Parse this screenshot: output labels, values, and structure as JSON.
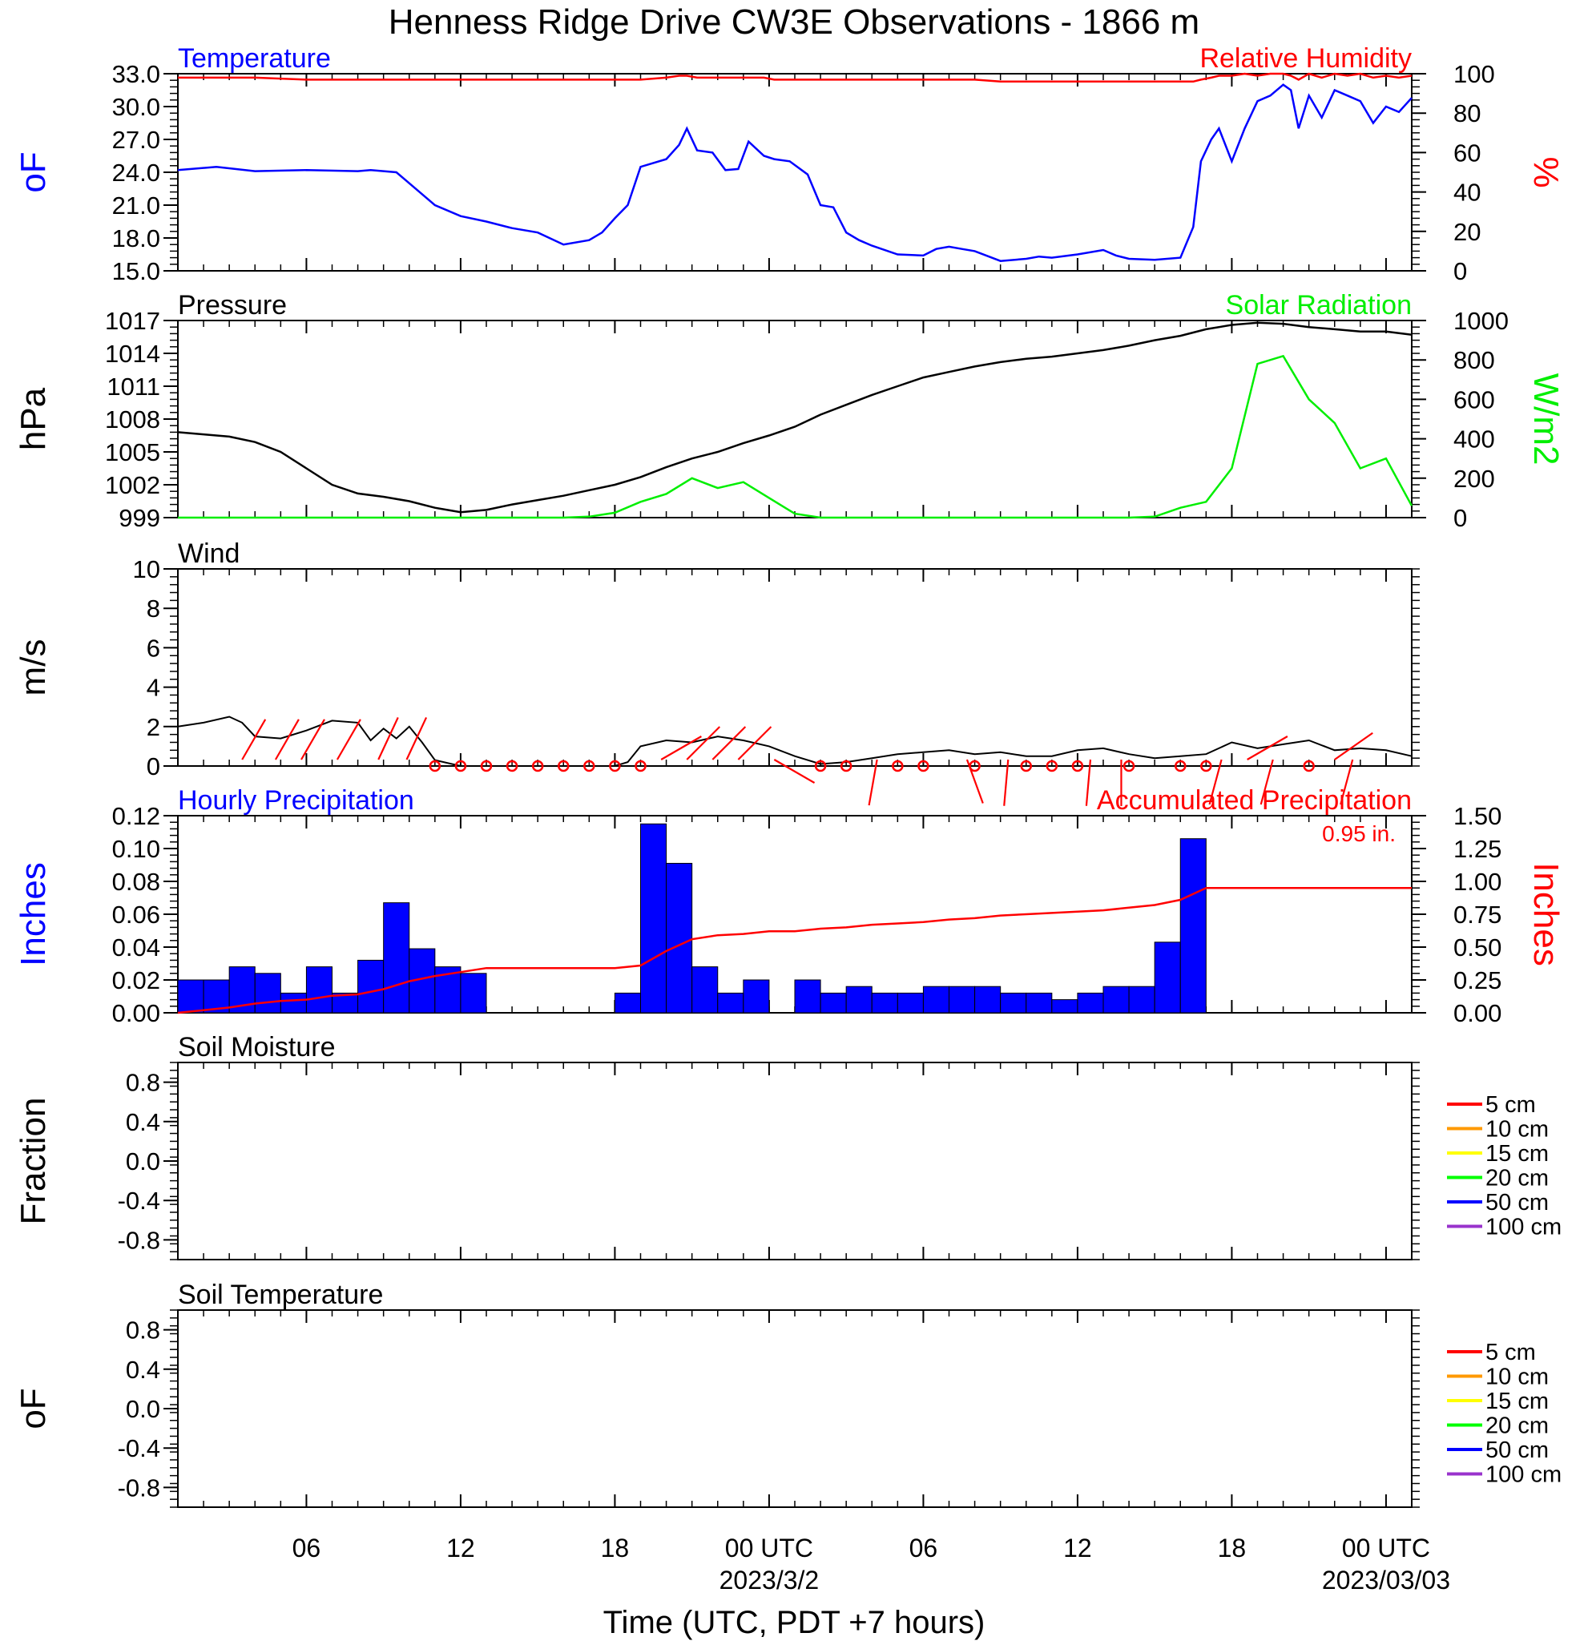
{
  "title": "Henness Ridge Drive CW3E Observations - 1866 m",
  "colors": {
    "temperature": "#0000ff",
    "humidity": "#ff0000",
    "pressure": "#000000",
    "solar": "#00ee00",
    "wind": "#000000",
    "wind_barb": "#ff0000",
    "precip_bar": "#0000ff",
    "accum": "#ff0000",
    "soil_5": "#ff0000",
    "soil_10": "#ff9900",
    "soil_15": "#ffff00",
    "soil_20": "#00ff00",
    "soil_50": "#0000ff",
    "soil_100": "#9933cc"
  },
  "x_axis": {
    "label": "Time (UTC, PDT +7 hours)",
    "range_hours": [
      0,
      48
    ],
    "ticks": [
      {
        "hour": 5,
        "label": "06",
        "sublabel": ""
      },
      {
        "hour": 11,
        "label": "12",
        "sublabel": ""
      },
      {
        "hour": 17,
        "label": "18",
        "sublabel": ""
      },
      {
        "hour": 23,
        "label": "00 UTC",
        "sublabel": "2023/3/2"
      },
      {
        "hour": 29,
        "label": "06",
        "sublabel": ""
      },
      {
        "hour": 35,
        "label": "12",
        "sublabel": ""
      },
      {
        "hour": 41,
        "label": "18",
        "sublabel": ""
      },
      {
        "hour": 47,
        "label": "00 UTC",
        "sublabel": "2023/03/03"
      }
    ]
  },
  "chart_data": [
    {
      "type": "line",
      "panel": "temperature-humidity",
      "title_left": "Temperature",
      "title_right": "Relative Humidity",
      "ylabel_left": "oF",
      "ylabel_right": "%",
      "ylim_left": [
        15,
        33
      ],
      "ylim_right": [
        0,
        100
      ],
      "yticks_left": [
        "33.0",
        "30.0",
        "27.0",
        "24.0",
        "21.0",
        "18.0",
        "15.0"
      ],
      "yticks_right": [
        "100",
        "80",
        "60",
        "40",
        "20",
        "0"
      ],
      "x": [
        0,
        1.5,
        3,
        5,
        7,
        7.5,
        8.5,
        9,
        10,
        11,
        12,
        13,
        14,
        15,
        16,
        16.5,
        17,
        17.5,
        18,
        19,
        19.5,
        19.8,
        20.2,
        20.8,
        21.3,
        21.8,
        22.2,
        22.8,
        23.2,
        23.8,
        24.5,
        25,
        25.5,
        26,
        26.5,
        27,
        28,
        29,
        29.5,
        30,
        30.5,
        31,
        32,
        33,
        33.5,
        34,
        35,
        36,
        36.5,
        37,
        38,
        39,
        39.5,
        39.8,
        40.2,
        40.5,
        41,
        41.5,
        42,
        42.5,
        43,
        43.3,
        43.6,
        44,
        44.5,
        45,
        45.5,
        46,
        46.5,
        47,
        47.5,
        48
      ],
      "series": [
        {
          "name": "Temperature",
          "axis": "left",
          "values": [
            24.2,
            24.5,
            24.1,
            24.2,
            24.1,
            24.2,
            24.0,
            23.0,
            21.0,
            20.0,
            19.5,
            18.9,
            18.5,
            17.4,
            17.8,
            18.5,
            19.8,
            21.0,
            24.5,
            25.2,
            26.5,
            28.0,
            26.0,
            25.8,
            24.2,
            24.3,
            26.8,
            25.5,
            25.2,
            25.0,
            23.8,
            21.0,
            20.8,
            18.5,
            17.8,
            17.3,
            16.5,
            16.4,
            17.0,
            17.2,
            17.0,
            16.8,
            15.9,
            16.1,
            16.3,
            16.2,
            16.5,
            16.9,
            16.4,
            16.1,
            16.0,
            16.2,
            19.0,
            25.0,
            27.0,
            28.0,
            25.0,
            28.0,
            30.5,
            31.0,
            32.0,
            31.5,
            28.0,
            31.0,
            29.0,
            31.5,
            31.0,
            30.5,
            28.5,
            30.0,
            29.5,
            30.8
          ]
        },
        {
          "name": "Relative Humidity",
          "axis": "right",
          "values": [
            98,
            98,
            98,
            97,
            97,
            97,
            97,
            97,
            97,
            97,
            97,
            97,
            97,
            97,
            97,
            97,
            97,
            97,
            97,
            98,
            99,
            99,
            98,
            98,
            98,
            98,
            98,
            98,
            97,
            97,
            97,
            97,
            97,
            97,
            97,
            97,
            97,
            97,
            97,
            97,
            97,
            97,
            96,
            96,
            96,
            96,
            96,
            96,
            96,
            96,
            96,
            96,
            96,
            97,
            98,
            99,
            99,
            100,
            99,
            100,
            100,
            99,
            97,
            100,
            98,
            100,
            99,
            100,
            98,
            99,
            98,
            99
          ]
        }
      ]
    },
    {
      "type": "line",
      "panel": "pressure-solar",
      "title_left": "Pressure",
      "title_right": "Solar Radiation",
      "ylabel_left": "hPa",
      "ylabel_right": "W/m2",
      "ylim_left": [
        999,
        1017
      ],
      "ylim_right": [
        0,
        1000
      ],
      "yticks_left": [
        "1017",
        "1014",
        "1011",
        "1008",
        "1005",
        "1002",
        "999"
      ],
      "yticks_right": [
        "1000",
        "800",
        "600",
        "400",
        "200",
        "0"
      ],
      "x": [
        0,
        1,
        2,
        3,
        4,
        5,
        6,
        7,
        8,
        9,
        10,
        11,
        12,
        13,
        14,
        15,
        16,
        17,
        18,
        19,
        20,
        21,
        22,
        23,
        24,
        25,
        26,
        27,
        28,
        29,
        30,
        31,
        32,
        33,
        34,
        35,
        36,
        37,
        38,
        39,
        40,
        41,
        42,
        43,
        44,
        45,
        46,
        47,
        48
      ],
      "series": [
        {
          "name": "Pressure",
          "axis": "left",
          "values": [
            1006.8,
            1006.6,
            1006.4,
            1005.9,
            1005.0,
            1003.5,
            1002.0,
            1001.2,
            1000.9,
            1000.5,
            999.9,
            999.5,
            999.7,
            1000.2,
            1000.6,
            1001.0,
            1001.5,
            1002.0,
            1002.7,
            1003.6,
            1004.4,
            1005.0,
            1005.8,
            1006.5,
            1007.3,
            1008.4,
            1009.3,
            1010.2,
            1011.0,
            1011.8,
            1012.3,
            1012.8,
            1013.2,
            1013.5,
            1013.7,
            1014.0,
            1014.3,
            1014.7,
            1015.2,
            1015.6,
            1016.2,
            1016.6,
            1016.8,
            1016.7,
            1016.4,
            1016.2,
            1016.0,
            1016.0,
            1015.7
          ]
        },
        {
          "name": "Solar Radiation",
          "axis": "right",
          "values": [
            0,
            0,
            0,
            0,
            0,
            0,
            0,
            0,
            0,
            0,
            0,
            0,
            0,
            0,
            0,
            0,
            5,
            25,
            80,
            120,
            200,
            150,
            180,
            100,
            20,
            0,
            0,
            0,
            0,
            0,
            0,
            0,
            0,
            0,
            0,
            0,
            0,
            0,
            5,
            50,
            80,
            250,
            780,
            820,
            600,
            480,
            250,
            300,
            60
          ]
        }
      ]
    },
    {
      "type": "line",
      "panel": "wind",
      "title_left": "Wind",
      "ylabel_left": "m/s",
      "ylim": [
        0,
        10
      ],
      "yticks_left": [
        "10",
        "8",
        "6",
        "4",
        "2",
        "0"
      ],
      "x": [
        0,
        1,
        2,
        2.5,
        3,
        4,
        5,
        6,
        7,
        7.5,
        8,
        8.5,
        9,
        9.5,
        10,
        11,
        12,
        13,
        14,
        15,
        16,
        17,
        17.5,
        18,
        19,
        20,
        21,
        22,
        23,
        24,
        25,
        26,
        27,
        28,
        29,
        30,
        31,
        32,
        33,
        34,
        35,
        36,
        37,
        38,
        39,
        40,
        41,
        42,
        43,
        44,
        45,
        46,
        47,
        48
      ],
      "series": [
        {
          "name": "Wind",
          "values": [
            2.0,
            2.2,
            2.5,
            2.2,
            1.5,
            1.4,
            1.8,
            2.3,
            2.2,
            1.3,
            1.9,
            1.4,
            2.0,
            1.2,
            0.3,
            0.0,
            0.0,
            0.0,
            0.0,
            0.0,
            0.0,
            0.0,
            0.2,
            1.0,
            1.3,
            1.2,
            1.5,
            1.3,
            1.0,
            0.5,
            0.1,
            0.2,
            0.4,
            0.6,
            0.7,
            0.8,
            0.6,
            0.7,
            0.5,
            0.5,
            0.8,
            0.9,
            0.6,
            0.4,
            0.5,
            0.6,
            1.2,
            0.9,
            1.1,
            1.3,
            0.8,
            0.9,
            0.8,
            0.5
          ]
        }
      ],
      "calm_hours": [
        10,
        11,
        12,
        13,
        14,
        15,
        16,
        17,
        18,
        25,
        26,
        28,
        29,
        31,
        33,
        34,
        35,
        37,
        39,
        40,
        44
      ],
      "barbs": [
        {
          "hour": 2.5,
          "dir": 330
        },
        {
          "hour": 3.8,
          "dir": 330
        },
        {
          "hour": 4.8,
          "dir": 330
        },
        {
          "hour": 6.2,
          "dir": 330
        },
        {
          "hour": 7.8,
          "dir": 335
        },
        {
          "hour": 8.9,
          "dir": 335
        },
        {
          "hour": 18.8,
          "dir": 300
        },
        {
          "hour": 19.8,
          "dir": 315
        },
        {
          "hour": 20.8,
          "dir": 315
        },
        {
          "hour": 21.8,
          "dir": 315
        },
        {
          "hour": 23.2,
          "dir": 240
        },
        {
          "hour": 27.2,
          "dir": 170
        },
        {
          "hour": 30.7,
          "dir": 200
        },
        {
          "hour": 32.3,
          "dir": 175
        },
        {
          "hour": 35.5,
          "dir": 175
        },
        {
          "hour": 36.7,
          "dir": 180
        },
        {
          "hour": 40.6,
          "dir": 165
        },
        {
          "hour": 41.6,
          "dir": 300
        },
        {
          "hour": 42.6,
          "dir": 165
        },
        {
          "hour": 45.0,
          "dir": 305
        },
        {
          "hour": 45.7,
          "dir": 165
        }
      ]
    },
    {
      "type": "bar",
      "panel": "precipitation",
      "title_left": "Hourly Precipitation",
      "title_right": "Accumulated Precipitation",
      "annotation": "0.95 in.",
      "ylabel_left": "Inches",
      "ylabel_right": "Inches",
      "ylim_left": [
        0,
        0.12
      ],
      "ylim_right": [
        0,
        1.5
      ],
      "yticks_left": [
        "0.12",
        "0.10",
        "0.08",
        "0.06",
        "0.04",
        "0.02",
        "0.00"
      ],
      "yticks_right": [
        "1.50",
        "1.25",
        "1.00",
        "0.75",
        "0.50",
        "0.25",
        "0.00"
      ],
      "hours": [
        0,
        1,
        2,
        3,
        4,
        5,
        6,
        7,
        8,
        9,
        10,
        11,
        12,
        13,
        14,
        15,
        16,
        17,
        18,
        19,
        20,
        21,
        22,
        23,
        24,
        25,
        26,
        27,
        28,
        29,
        30,
        31,
        32,
        33,
        34,
        35,
        36,
        37,
        38,
        39,
        40,
        41,
        42,
        43,
        44,
        45,
        46,
        47
      ],
      "values": [
        0.02,
        0.02,
        0.028,
        0.024,
        0.012,
        0.028,
        0.012,
        0.032,
        0.067,
        0.039,
        0.028,
        0.024,
        0,
        0,
        0,
        0,
        0,
        0.012,
        0.115,
        0.091,
        0.028,
        0.012,
        0.02,
        0,
        0.02,
        0.012,
        0.016,
        0.012,
        0.012,
        0.016,
        0.016,
        0.016,
        0.012,
        0.012,
        0.008,
        0.012,
        0.016,
        0.016,
        0.043,
        0.106,
        0,
        0,
        0,
        0,
        0,
        0,
        0,
        0
      ],
      "accumulated": [
        0,
        0.02,
        0.04,
        0.07,
        0.09,
        0.1,
        0.13,
        0.14,
        0.18,
        0.24,
        0.28,
        0.31,
        0.34,
        0.34,
        0.34,
        0.34,
        0.34,
        0.34,
        0.36,
        0.47,
        0.56,
        0.59,
        0.6,
        0.62,
        0.62,
        0.64,
        0.65,
        0.67,
        0.68,
        0.69,
        0.71,
        0.72,
        0.74,
        0.75,
        0.76,
        0.77,
        0.78,
        0.8,
        0.82,
        0.86,
        0.95,
        0.95,
        0.95,
        0.95,
        0.95,
        0.95,
        0.95,
        0.95,
        0.95
      ]
    },
    {
      "type": "line",
      "panel": "soil-moisture",
      "title_left": "Soil Moisture",
      "ylabel_left": "Fraction",
      "ylim": [
        -1,
        1
      ],
      "yticks_left": [
        "0.8",
        "0.4",
        "0.0",
        "-0.4",
        "-0.8"
      ],
      "legend": [
        "5 cm",
        "10 cm",
        "15 cm",
        "20 cm",
        "50 cm",
        "100 cm"
      ],
      "series": []
    },
    {
      "type": "line",
      "panel": "soil-temperature",
      "title_left": "Soil Temperature",
      "ylabel_left": "oF",
      "ylim": [
        -1,
        1
      ],
      "yticks_left": [
        "0.8",
        "0.4",
        "0.0",
        "-0.4",
        "-0.8"
      ],
      "legend": [
        "5 cm",
        "10 cm",
        "15 cm",
        "20 cm",
        "50 cm",
        "100 cm"
      ],
      "series": []
    }
  ]
}
